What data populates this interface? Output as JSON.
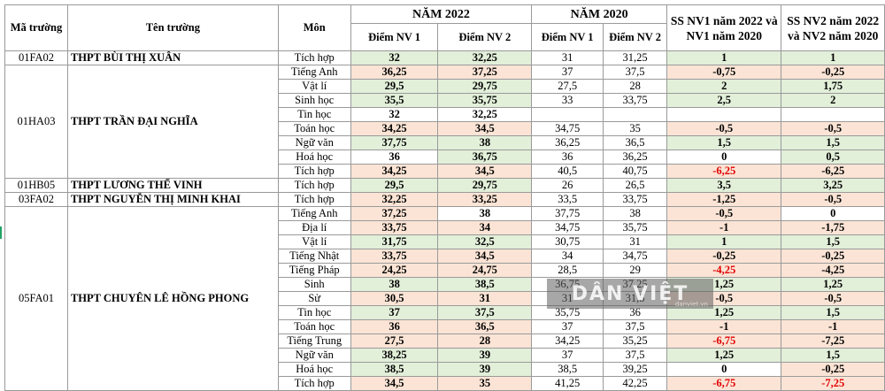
{
  "header": {
    "col_code": "Mã trường",
    "col_school": "Tên trường",
    "col_subject": "Môn",
    "year_2022": "NĂM 2022",
    "year_2020": "NĂM 2020",
    "nv1": "Điểm NV 1",
    "nv2": "Điểm NV 2",
    "cmp_nv1": "SS NV1 năm 2022 và NV1 năm 2020",
    "cmp_nv2": "SS NV2 năm 2022 và NV2 năm 2020"
  },
  "watermark": {
    "text": "DÂN VIỆT",
    "sub": "danviet.vn"
  },
  "colors": {
    "green": "#e2efd9",
    "pink": "#fbe4d5",
    "red_text": "#e00000"
  },
  "groups": [
    {
      "code": "01FA02",
      "school": "THPT BÙI THỊ XUÂN",
      "rows": [
        {
          "subject": "Tích hợp",
          "n22_1": "32",
          "n22_2": "32,25",
          "n20_1": "31",
          "n20_2": "31,25",
          "d1": "1",
          "d2": "1",
          "c": [
            "g",
            "g",
            "w",
            "w",
            "g",
            "g"
          ],
          "r1": false,
          "r2": false
        }
      ]
    },
    {
      "code": "01HA03",
      "school": "THPT TRẦN ĐẠI NGHĨA",
      "rows": [
        {
          "subject": "Tiếng Anh",
          "n22_1": "36,25",
          "n22_2": "37,25",
          "n20_1": "37",
          "n20_2": "37,5",
          "d1": "-0,75",
          "d2": "-0,25",
          "c": [
            "p",
            "p",
            "w",
            "w",
            "p",
            "p"
          ],
          "r1": false,
          "r2": false
        },
        {
          "subject": "Vật lí",
          "n22_1": "29,5",
          "n22_2": "29,75",
          "n20_1": "27,5",
          "n20_2": "28",
          "d1": "2",
          "d2": "1,75",
          "c": [
            "g",
            "g",
            "w",
            "w",
            "g",
            "g"
          ],
          "r1": false,
          "r2": false
        },
        {
          "subject": "Sinh học",
          "n22_1": "35,5",
          "n22_2": "35,75",
          "n20_1": "33",
          "n20_2": "33,75",
          "d1": "2,5",
          "d2": "2",
          "c": [
            "g",
            "g",
            "w",
            "w",
            "g",
            "g"
          ],
          "r1": false,
          "r2": false
        },
        {
          "subject": "Tin học",
          "n22_1": "32",
          "n22_2": "32,25",
          "n20_1": "",
          "n20_2": "",
          "d1": "",
          "d2": "",
          "c": [
            "w",
            "w",
            "w",
            "w",
            "w",
            "w"
          ],
          "r1": false,
          "r2": false
        },
        {
          "subject": "Toán học",
          "n22_1": "34,25",
          "n22_2": "34,5",
          "n20_1": "34,75",
          "n20_2": "35",
          "d1": "-0,5",
          "d2": "-0,5",
          "c": [
            "p",
            "p",
            "w",
            "w",
            "p",
            "p"
          ],
          "r1": false,
          "r2": false
        },
        {
          "subject": "Ngữ văn",
          "n22_1": "37,75",
          "n22_2": "38",
          "n20_1": "36,25",
          "n20_2": "36,5",
          "d1": "1,5",
          "d2": "1,5",
          "c": [
            "g",
            "g",
            "w",
            "w",
            "g",
            "g"
          ],
          "r1": false,
          "r2": false
        },
        {
          "subject": "Hoá học",
          "n22_1": "36",
          "n22_2": "36,75",
          "n20_1": "36",
          "n20_2": "36,25",
          "d1": "0",
          "d2": "0,5",
          "c": [
            "w",
            "g",
            "w",
            "w",
            "w",
            "g"
          ],
          "r1": false,
          "r2": false
        },
        {
          "subject": "Tích hợp",
          "n22_1": "34,25",
          "n22_2": "34,5",
          "n20_1": "40,5",
          "n20_2": "40,75",
          "d1": "-6,25",
          "d2": "-6,25",
          "c": [
            "p",
            "p",
            "w",
            "w",
            "p",
            "p"
          ],
          "r1": true,
          "r2": false
        }
      ]
    },
    {
      "code": "01HB05",
      "school": "THPT LƯƠNG THẾ VINH",
      "rows": [
        {
          "subject": "Tích hợp",
          "n22_1": "29,5",
          "n22_2": "29,75",
          "n20_1": "26",
          "n20_2": "26,5",
          "d1": "3,5",
          "d2": "3,25",
          "c": [
            "g",
            "g",
            "w",
            "w",
            "g",
            "g"
          ],
          "r1": false,
          "r2": false
        }
      ]
    },
    {
      "code": "03FA02",
      "school": "THPT NGUYỄN THỊ MINH KHAI",
      "rows": [
        {
          "subject": "Tích hợp",
          "n22_1": "32,25",
          "n22_2": "33,25",
          "n20_1": "33,5",
          "n20_2": "33,75",
          "d1": "-1,25",
          "d2": "-0,5",
          "c": [
            "p",
            "p",
            "w",
            "w",
            "p",
            "p"
          ],
          "r1": false,
          "r2": false
        }
      ]
    },
    {
      "code": "05FA01",
      "school": "THPT CHUYÊN LÊ HỒNG PHONG",
      "rows": [
        {
          "subject": "Tiếng Anh",
          "n22_1": "37,25",
          "n22_2": "38",
          "n20_1": "37,75",
          "n20_2": "38",
          "d1": "-0,5",
          "d2": "0",
          "c": [
            "p",
            "w",
            "w",
            "w",
            "p",
            "w"
          ],
          "r1": false,
          "r2": false
        },
        {
          "subject": "Địa lí",
          "n22_1": "33,75",
          "n22_2": "34",
          "n20_1": "34,75",
          "n20_2": "35,75",
          "d1": "-1",
          "d2": "-1,75",
          "c": [
            "p",
            "p",
            "w",
            "w",
            "p",
            "p"
          ],
          "r1": false,
          "r2": false
        },
        {
          "subject": "Vật lí",
          "n22_1": "31,75",
          "n22_2": "32,5",
          "n20_1": "30,75",
          "n20_2": "31",
          "d1": "1",
          "d2": "1,5",
          "c": [
            "g",
            "g",
            "w",
            "w",
            "g",
            "g"
          ],
          "r1": false,
          "r2": false
        },
        {
          "subject": "Tiếng Nhật",
          "n22_1": "33,75",
          "n22_2": "34,5",
          "n20_1": "34",
          "n20_2": "34,75",
          "d1": "-0,25",
          "d2": "-0,25",
          "c": [
            "p",
            "p",
            "w",
            "w",
            "p",
            "p"
          ],
          "r1": false,
          "r2": false
        },
        {
          "subject": "Tiếng Pháp",
          "n22_1": "24,25",
          "n22_2": "24,75",
          "n20_1": "28,5",
          "n20_2": "29",
          "d1": "-4,25",
          "d2": "-4,25",
          "c": [
            "p",
            "p",
            "w",
            "w",
            "p",
            "p"
          ],
          "r1": true,
          "r2": false
        },
        {
          "subject": "Sinh",
          "n22_1": "38",
          "n22_2": "38,5",
          "n20_1": "36,75",
          "n20_2": "37,25",
          "d1": "1,25",
          "d2": "1,25",
          "c": [
            "g",
            "g",
            "w",
            "w",
            "g",
            "g"
          ],
          "r1": false,
          "r2": false
        },
        {
          "subject": "Sử",
          "n22_1": "30,5",
          "n22_2": "31",
          "n20_1": "31",
          "n20_2": "31,5",
          "d1": "-0,5",
          "d2": "-0,5",
          "c": [
            "p",
            "p",
            "w",
            "w",
            "p",
            "p"
          ],
          "r1": false,
          "r2": false
        },
        {
          "subject": "Tin học",
          "n22_1": "37",
          "n22_2": "37,5",
          "n20_1": "35,75",
          "n20_2": "36",
          "d1": "1,25",
          "d2": "1,5",
          "c": [
            "g",
            "g",
            "w",
            "w",
            "g",
            "g"
          ],
          "r1": false,
          "r2": false
        },
        {
          "subject": "Toán học",
          "n22_1": "36",
          "n22_2": "36,5",
          "n20_1": "37",
          "n20_2": "37,5",
          "d1": "-1",
          "d2": "-1",
          "c": [
            "p",
            "p",
            "w",
            "w",
            "p",
            "p"
          ],
          "r1": false,
          "r2": false
        },
        {
          "subject": "Tiếng Trung",
          "n22_1": "27,5",
          "n22_2": "28",
          "n20_1": "34,25",
          "n20_2": "35,25",
          "d1": "-6,75",
          "d2": "-7,25",
          "c": [
            "p",
            "p",
            "w",
            "w",
            "p",
            "p"
          ],
          "r1": true,
          "r2": false
        },
        {
          "subject": "Ngữ văn",
          "n22_1": "38,25",
          "n22_2": "39",
          "n20_1": "37",
          "n20_2": "37,5",
          "d1": "1,25",
          "d2": "1,5",
          "c": [
            "g",
            "g",
            "w",
            "w",
            "g",
            "g"
          ],
          "r1": false,
          "r2": false
        },
        {
          "subject": "Hoá học",
          "n22_1": "38,5",
          "n22_2": "39",
          "n20_1": "38,5",
          "n20_2": "39,25",
          "d1": "0",
          "d2": "-0,25",
          "c": [
            "g",
            "g",
            "w",
            "w",
            "w",
            "p"
          ],
          "r1": false,
          "r2": false
        },
        {
          "subject": "Tích hợp",
          "n22_1": "34,5",
          "n22_2": "35",
          "n20_1": "41,25",
          "n20_2": "42,25",
          "d1": "-6,75",
          "d2": "-7,25",
          "c": [
            "p",
            "p",
            "w",
            "w",
            "p",
            "p"
          ],
          "r1": true,
          "r2": true
        }
      ]
    }
  ]
}
